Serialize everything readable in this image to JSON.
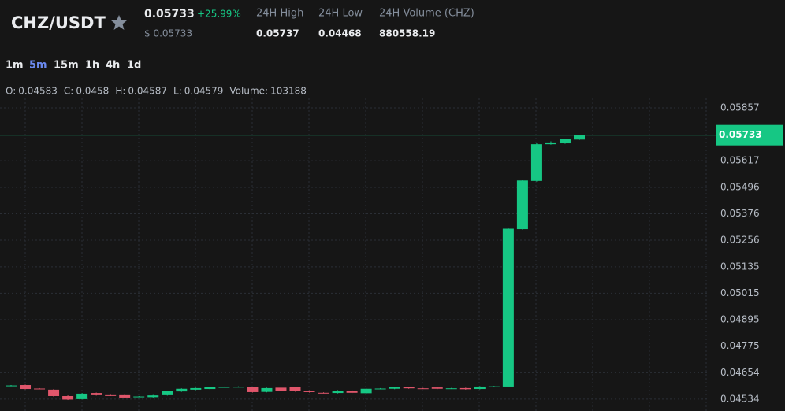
{
  "header": {
    "pair": "CHZ/USDT",
    "price": "0.05733",
    "change": "+25.99%",
    "usd_price": "$ 0.05733",
    "stats": [
      {
        "label": "24H High",
        "value": "0.05737"
      },
      {
        "label": "24H Low",
        "value": "0.04468"
      },
      {
        "label": "24H Volume (CHZ)",
        "value": "880558.19"
      }
    ]
  },
  "intervals": [
    "1m",
    "5m",
    "15m",
    "1h",
    "4h",
    "1d"
  ],
  "active_interval_index": 1,
  "ohlc_info": [
    {
      "label": "O:",
      "value": "0.04583"
    },
    {
      "label": "C:",
      "value": "0.0458"
    },
    {
      "label": "H:",
      "value": "0.04587"
    },
    {
      "label": "L:",
      "value": "0.04579"
    },
    {
      "label": "Volume:",
      "value": "103188"
    }
  ],
  "chart_data": {
    "type": "candlestick",
    "open": [
      0.04594,
      0.04598,
      0.04582,
      0.04577,
      0.04548,
      0.04534,
      0.04562,
      0.04552,
      0.04552,
      0.04545,
      0.04543,
      0.04552,
      0.04569,
      0.04577,
      0.0458,
      0.04588,
      0.04589,
      0.04588,
      0.04567,
      0.04586,
      0.04588,
      0.04572,
      0.04563,
      0.04562,
      0.04573,
      0.04561,
      0.04581,
      0.04581,
      0.04588,
      0.04583,
      0.04587,
      0.04582,
      0.04584,
      0.0458,
      0.04591,
      0.04591,
      0.05306,
      0.05525,
      0.05692,
      0.05696,
      0.05713
    ],
    "high": [
      0.04598,
      0.046,
      0.04584,
      0.0458,
      0.04551,
      0.04562,
      0.04564,
      0.04554,
      0.04554,
      0.04548,
      0.04553,
      0.04572,
      0.04583,
      0.04586,
      0.0459,
      0.04591,
      0.04592,
      0.0459,
      0.04586,
      0.04588,
      0.0459,
      0.04574,
      0.04565,
      0.04575,
      0.04575,
      0.04583,
      0.04584,
      0.0459,
      0.0459,
      0.04585,
      0.04589,
      0.04585,
      0.04586,
      0.04593,
      0.04594,
      0.0531,
      0.0553,
      0.05697,
      0.05705,
      0.05716,
      0.05735
    ],
    "low": [
      0.04592,
      0.04578,
      0.04579,
      0.04545,
      0.0453,
      0.04532,
      0.0455,
      0.04548,
      0.04539,
      0.04543,
      0.04541,
      0.0455,
      0.04567,
      0.04575,
      0.04578,
      0.04586,
      0.04587,
      0.04564,
      0.04565,
      0.04571,
      0.04568,
      0.04564,
      0.0456,
      0.0456,
      0.04561,
      0.04559,
      0.04579,
      0.04579,
      0.04581,
      0.0458,
      0.04579,
      0.0458,
      0.04577,
      0.04578,
      0.04589,
      0.0459,
      0.05304,
      0.05522,
      0.0569,
      0.05694,
      0.05711
    ],
    "close": [
      0.04596,
      0.0458,
      0.04581,
      0.04548,
      0.04532,
      0.04559,
      0.04552,
      0.0455,
      0.04541,
      0.04546,
      0.04551,
      0.0457,
      0.04581,
      0.04584,
      0.04588,
      0.04589,
      0.0459,
      0.04566,
      0.04584,
      0.04573,
      0.0457,
      0.04566,
      0.04562,
      0.04573,
      0.04563,
      0.04581,
      0.04582,
      0.04588,
      0.04583,
      0.04582,
      0.04581,
      0.04583,
      0.04579,
      0.04591,
      0.04592,
      0.05308,
      0.05527,
      0.05692,
      0.057,
      0.05714,
      0.05733
    ],
    "ylim": [
      0.0448,
      0.059
    ],
    "yticks": [
      0.04534,
      0.04654,
      0.04775,
      0.04895,
      0.05015,
      0.05135,
      0.05256,
      0.05376,
      0.05496,
      0.05617,
      0.05857
    ],
    "grid": true,
    "up_color": "#16c784",
    "down_color": "#e0566b",
    "last_price": 0.05733
  }
}
